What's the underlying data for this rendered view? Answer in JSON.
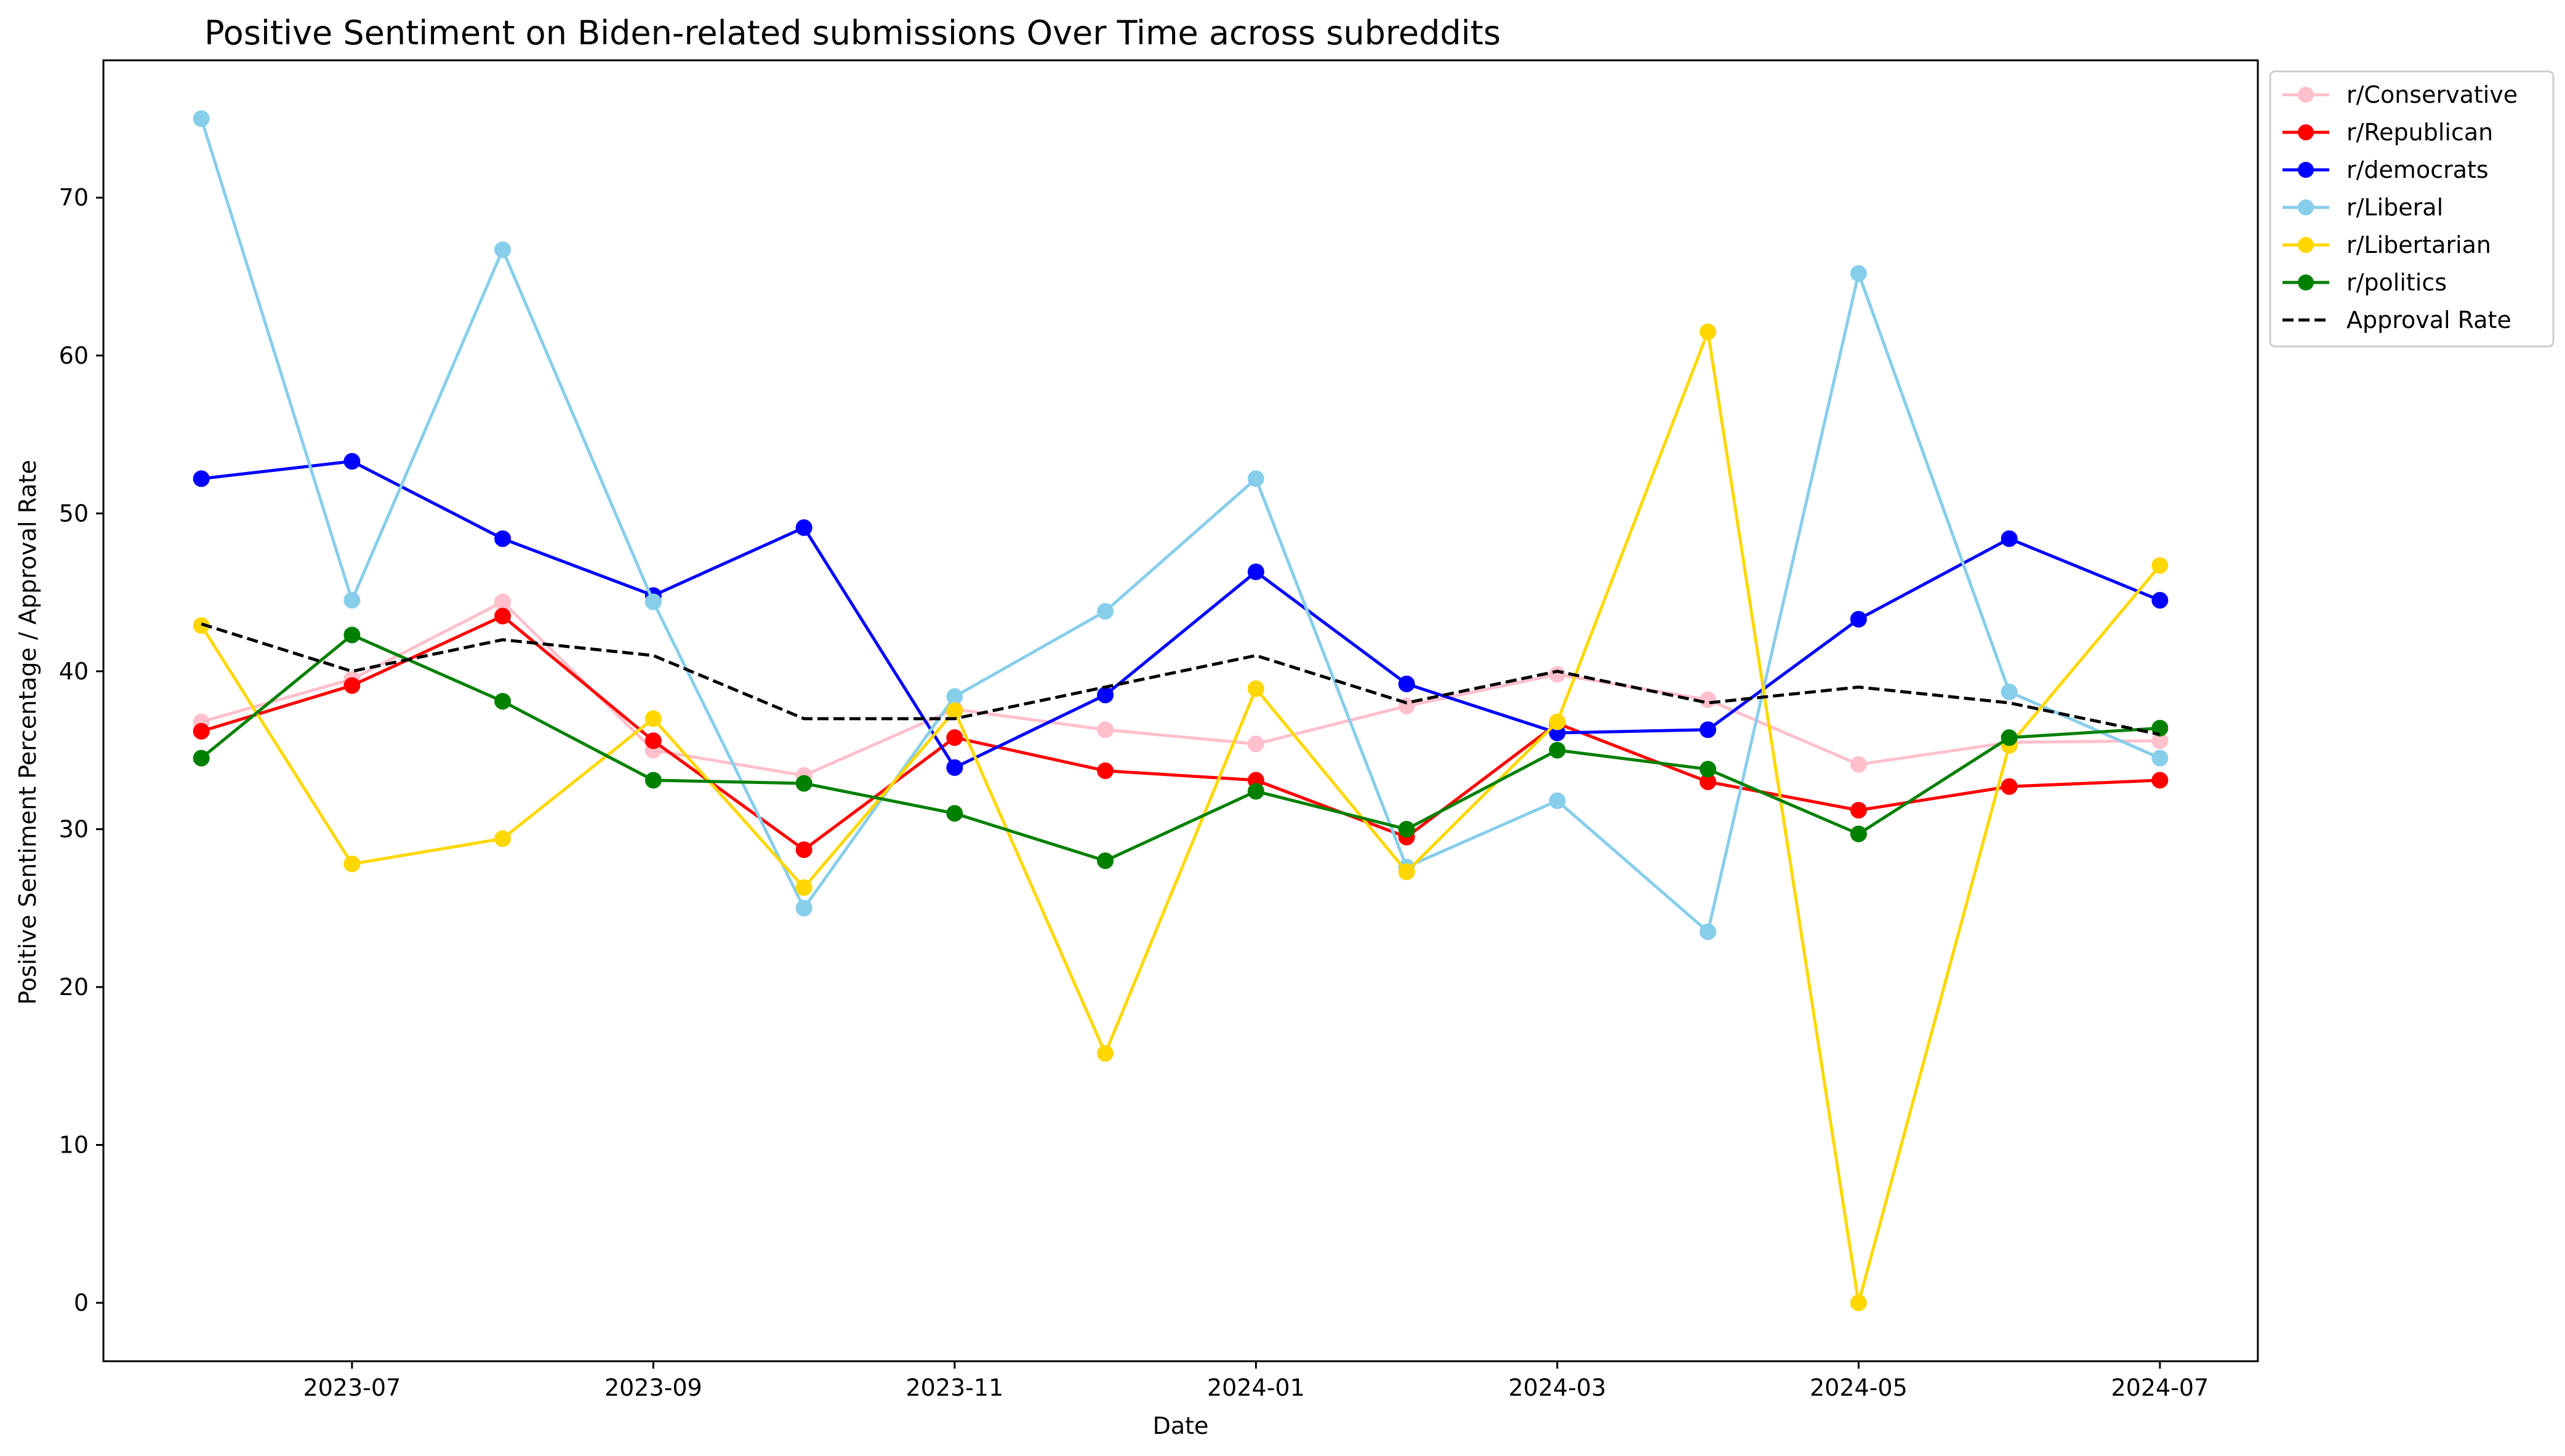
{
  "chart_data": {
    "type": "line",
    "title": "Positive Sentiment on Biden-related submissions Over Time across subreddits",
    "xlabel": "Date",
    "ylabel": "Positive Sentiment Percentage / Approval Rate",
    "x": [
      "2023-06",
      "2023-07",
      "2023-08",
      "2023-09",
      "2023-10",
      "2023-11",
      "2023-12",
      "2024-01",
      "2024-02",
      "2024-03",
      "2024-04",
      "2024-05",
      "2024-06",
      "2024-07"
    ],
    "x_tick_labels": [
      "2023-07",
      "2023-09",
      "2023-11",
      "2024-01",
      "2024-03",
      "2024-05",
      "2024-07"
    ],
    "y_ticks": [
      0,
      10,
      20,
      30,
      40,
      50,
      60,
      70
    ],
    "ylim": [
      -3.7,
      78.7
    ],
    "grid": false,
    "legend_position": "outside top-right",
    "series": [
      {
        "name": "r/Conservative",
        "color": "#ffc0cb",
        "style": "solid",
        "marker": "circle",
        "values": [
          36.8,
          39.5,
          44.4,
          35.0,
          33.4,
          37.6,
          36.3,
          35.4,
          37.8,
          39.8,
          38.2,
          34.1,
          35.5,
          35.6
        ]
      },
      {
        "name": "r/Republican",
        "color": "#ff0000",
        "style": "solid",
        "marker": "circle",
        "values": [
          36.2,
          39.1,
          43.5,
          35.6,
          28.7,
          35.8,
          33.7,
          33.1,
          29.5,
          36.7,
          33.0,
          31.2,
          32.7,
          33.1
        ]
      },
      {
        "name": "r/democrats",
        "color": "#0000ff",
        "style": "solid",
        "marker": "circle",
        "values": [
          52.2,
          53.3,
          48.4,
          44.8,
          49.1,
          33.9,
          38.5,
          46.3,
          39.2,
          36.1,
          36.3,
          43.3,
          48.4,
          44.5
        ]
      },
      {
        "name": "r/Liberal",
        "color": "#87ceeb",
        "style": "solid",
        "marker": "circle",
        "values": [
          75.0,
          44.5,
          66.7,
          44.4,
          25.0,
          38.4,
          43.8,
          52.2,
          27.6,
          31.8,
          23.5,
          65.2,
          38.7,
          34.5
        ]
      },
      {
        "name": "r/Libertarian",
        "color": "#ffd700",
        "style": "solid",
        "marker": "circle",
        "values": [
          42.9,
          27.8,
          29.4,
          37.0,
          26.3,
          37.5,
          15.8,
          38.9,
          27.3,
          36.8,
          61.5,
          0.0,
          35.3,
          46.7
        ]
      },
      {
        "name": "r/politics",
        "color": "#008000",
        "style": "solid",
        "marker": "circle",
        "values": [
          34.5,
          42.3,
          38.1,
          33.1,
          32.9,
          31.0,
          28.0,
          32.4,
          30.0,
          35.0,
          33.8,
          29.7,
          35.8,
          36.4
        ]
      },
      {
        "name": "Approval Rate",
        "color": "#000000",
        "style": "dashed",
        "marker": "none",
        "values": [
          43.0,
          40.0,
          42.0,
          41.0,
          37.0,
          37.0,
          39.0,
          41.0,
          38.0,
          40.0,
          38.0,
          39.0,
          38.0,
          36.0
        ]
      }
    ]
  }
}
